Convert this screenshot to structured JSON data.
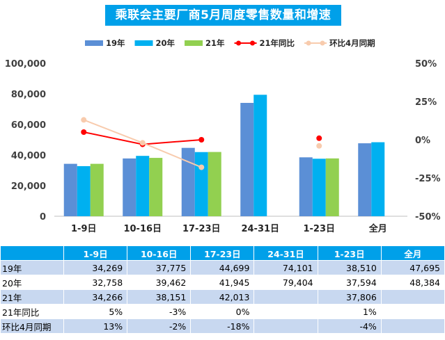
{
  "chart_data": {
    "type": "bar",
    "title": "乘联会主要厂商5月周度零售数量和增速",
    "categories": [
      "1-9日",
      "10-16日",
      "17-23日",
      "24-31日",
      "1-23日",
      "全月"
    ],
    "series": [
      {
        "name": "19年",
        "kind": "bar",
        "color": "#5b8fd6",
        "values": [
          34269,
          37775,
          44699,
          74101,
          38510,
          47695
        ]
      },
      {
        "name": "20年",
        "kind": "bar",
        "color": "#00b0f0",
        "values": [
          32758,
          39462,
          41945,
          79404,
          37594,
          48384
        ]
      },
      {
        "name": "21年",
        "kind": "bar",
        "color": "#92d050",
        "values": [
          34266,
          38151,
          42013,
          null,
          37806,
          null
        ]
      },
      {
        "name": "21年同比",
        "kind": "line",
        "axis": "right",
        "color": "#ff0000",
        "values": [
          5,
          -3,
          0,
          null,
          1,
          null
        ]
      },
      {
        "name": "环比4月同期",
        "kind": "line",
        "axis": "right",
        "color": "#f8cbad",
        "values": [
          13,
          -2,
          -18,
          null,
          -4,
          null
        ]
      }
    ],
    "ylim_left": [
      0,
      100000
    ],
    "yticks_left": [
      "0",
      "20,000",
      "40,000",
      "60,000",
      "80,000",
      "100,000"
    ],
    "ylim_right": [
      -50,
      50
    ],
    "yticks_right": [
      "-50%",
      "-25%",
      "0%",
      "25%",
      "50%"
    ],
    "legend_position": "top",
    "grid": false
  },
  "table": {
    "header": [
      "",
      "1-9日",
      "10-16日",
      "17-23日",
      "24-31日",
      "1-23日",
      "全月"
    ],
    "rows": [
      {
        "label": "19年",
        "cells": [
          "34,269",
          "37,775",
          "44,699",
          "74,101",
          "38,510",
          "47,695"
        ]
      },
      {
        "label": "20年",
        "cells": [
          "32,758",
          "39,462",
          "41,945",
          "79,404",
          "37,594",
          "48,384"
        ]
      },
      {
        "label": "21年",
        "cells": [
          "34,266",
          "38,151",
          "42,013",
          "",
          "37,806",
          ""
        ]
      },
      {
        "label": "21年同比",
        "cells": [
          "5%",
          "-3%",
          "0%",
          "",
          "1%",
          ""
        ]
      },
      {
        "label": "环比4月同期",
        "cells": [
          "13%",
          "-2%",
          "-18%",
          "",
          "-4%",
          ""
        ]
      }
    ]
  }
}
